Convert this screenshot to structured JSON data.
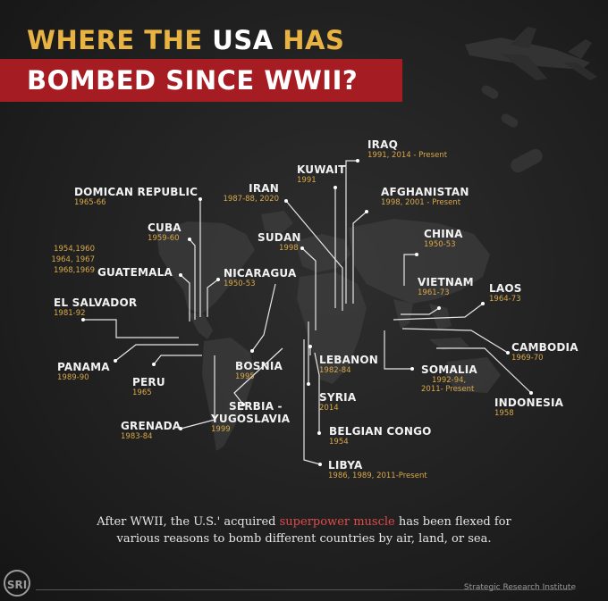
{
  "title": {
    "line1_part1": "WHERE THE ",
    "line1_part2": "USA",
    "line1_part3": " HAS",
    "line2": "BOMBED SINCE WWII?"
  },
  "countries": [
    {
      "id": "iraq",
      "name": "IRAQ",
      "years": "1991, 2014 - Present"
    },
    {
      "id": "kuwait",
      "name": "KUWAIT",
      "years": "1991"
    },
    {
      "id": "dominican-republic",
      "name": "DOMICAN REPUBLIC",
      "years": "1965-66"
    },
    {
      "id": "iran",
      "name": "IRAN",
      "years": "1987-88, 2020"
    },
    {
      "id": "afghanistan",
      "name": "AFGHANISTAN",
      "years": "1998, 2001 - Present"
    },
    {
      "id": "cuba",
      "name": "CUBA",
      "years": "1959-60"
    },
    {
      "id": "sudan",
      "name": "SUDAN",
      "years": "1998"
    },
    {
      "id": "china",
      "name": "CHINA",
      "years": "1950-53"
    },
    {
      "id": "guatemala",
      "name": "GUATEMALA",
      "years": [
        "1954,1960",
        "1964, 1967",
        "1968,1969"
      ]
    },
    {
      "id": "nicaragua",
      "name": "NICARAGUA",
      "years": "1950-53"
    },
    {
      "id": "vietnam",
      "name": "VIETNAM",
      "years": "1961-73"
    },
    {
      "id": "laos",
      "name": "LAOS",
      "years": "1964-73"
    },
    {
      "id": "el-salvador",
      "name": "EL SALVADOR",
      "years": "1981-92"
    },
    {
      "id": "cambodia",
      "name": "CAMBODIA",
      "years": "1969-70"
    },
    {
      "id": "lebanon",
      "name": "LEBANON",
      "years": "1982-84"
    },
    {
      "id": "panama",
      "name": "PANAMA",
      "years": "1989-90"
    },
    {
      "id": "bosnia",
      "name": "BOSNIA",
      "years": "1995"
    },
    {
      "id": "somalia",
      "name": "SOMALIA",
      "years": "1992-94,",
      "years2": "2011- Present"
    },
    {
      "id": "peru",
      "name": "PERU",
      "years": "1965"
    },
    {
      "id": "syria",
      "name": "SYRIA",
      "years": "2014"
    },
    {
      "id": "indonesia",
      "name": "INDONESIA",
      "years": "1958"
    },
    {
      "id": "serbia",
      "name": "SERBIA -",
      "name2": "YUGOSLAVIA",
      "years": "1999"
    },
    {
      "id": "grenada",
      "name": "GRENADA",
      "years": "1983-84"
    },
    {
      "id": "belgian-congo",
      "name": "BELGIAN CONGO",
      "years": "1954"
    },
    {
      "id": "libya",
      "name": "LIBYA",
      "years": "1986, 1989, 2011-Present"
    }
  ],
  "footer": {
    "before": "After WWII, the U.S.' acquired ",
    "highlight": "superpower muscle",
    "after_line1": " has been flexed for",
    "line2": "various reasons to bomb different countries by air, land, or sea."
  },
  "logo_text": "SRI",
  "brand": "Strategic Research Institute",
  "colors": {
    "title_yellow": "#e8b342",
    "banner_red": "#a51c22",
    "year_gold": "#d9a84a",
    "highlight_red": "#e24a4a",
    "background": "#1f1f1f"
  },
  "decor": {
    "aircraft_icon": "bomber-jet-icon",
    "bomb_icon": "falling-bomb-icon"
  }
}
